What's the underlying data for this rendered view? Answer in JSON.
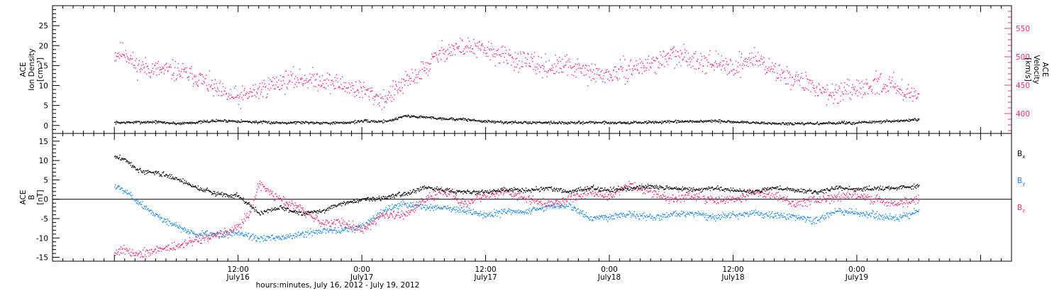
{
  "colors": {
    "density": "#000000",
    "velocity": "#e8326b",
    "bx": "#000000",
    "by": "#1f86e0",
    "bz": "#e8326b",
    "axis": "#000000"
  },
  "chart_data": [
    {
      "type": "scatter",
      "panel": "top",
      "ylabel_left": [
        "ACE",
        "Ion Density",
        "[cm⁻³]"
      ],
      "ylabel_right": [
        "ACE",
        "Velocity",
        "[km/s]"
      ],
      "ylim_left": [
        -2,
        30
      ],
      "yticks_left": [
        0,
        5,
        10,
        15,
        20,
        25
      ],
      "ylim_right": [
        365,
        590
      ],
      "yticks_right": [
        400,
        450,
        500,
        550
      ],
      "series": [
        {
          "key": "density",
          "axis": "left",
          "x": [
            0,
            2,
            4,
            6,
            8,
            10,
            12,
            14,
            16,
            18,
            20,
            22,
            24,
            26,
            27,
            28,
            30,
            32,
            34,
            36,
            38,
            40,
            42,
            44,
            46,
            48,
            50,
            52,
            54,
            56,
            58,
            60,
            62,
            64,
            66,
            68,
            70,
            72,
            74,
            76,
            78
          ],
          "y": [
            0.8,
            0.9,
            1.0,
            0.6,
            0.9,
            1.3,
            1.2,
            0.9,
            0.8,
            0.9,
            0.8,
            0.7,
            1.2,
            1.1,
            1.5,
            2.5,
            2.2,
            1.8,
            1.6,
            1.1,
            0.9,
            0.8,
            0.9,
            0.7,
            0.9,
            0.8,
            0.8,
            0.9,
            1.0,
            1.1,
            1.2,
            1.0,
            0.8,
            0.6,
            0.5,
            0.6,
            0.7,
            0.8,
            1.0,
            1.2,
            1.6
          ]
        },
        {
          "key": "velocity",
          "axis": "right",
          "x": [
            0,
            1,
            2,
            4,
            6,
            8,
            10,
            11,
            12,
            14,
            16,
            18,
            20,
            22,
            24,
            26,
            28,
            30,
            31,
            32,
            34,
            36,
            38,
            40,
            42,
            44,
            46,
            48,
            50,
            52,
            54,
            56,
            58,
            60,
            62,
            64,
            66,
            68,
            70,
            72,
            74,
            76,
            78
          ],
          "y": [
            505,
            510,
            485,
            478,
            475,
            465,
            440,
            432,
            428,
            442,
            457,
            462,
            460,
            451,
            442,
            425,
            452,
            478,
            498,
            512,
            518,
            512,
            500,
            490,
            482,
            485,
            472,
            468,
            480,
            488,
            502,
            498,
            490,
            482,
            500,
            475,
            462,
            445,
            435,
            440,
            455,
            448,
            430
          ]
        }
      ]
    },
    {
      "type": "scatter",
      "panel": "bottom",
      "ylabel_left": [
        "ACE",
        "B",
        "[nT]"
      ],
      "ylim": [
        -16,
        17
      ],
      "yticks": [
        -15,
        -10,
        -5,
        0,
        5,
        10,
        15
      ],
      "series": [
        {
          "key": "bx",
          "name": "Bx",
          "x": [
            0,
            1,
            2,
            3,
            4,
            6,
            8,
            10,
            12,
            14,
            16,
            18,
            20,
            22,
            24,
            26,
            28,
            30,
            32,
            34,
            36,
            38,
            40,
            42,
            44,
            46,
            48,
            50,
            52,
            54,
            56,
            58,
            60,
            62,
            64,
            66,
            68,
            70,
            72,
            74,
            76,
            78
          ],
          "y": [
            11,
            10.5,
            8,
            7,
            7,
            5.5,
            3,
            1.5,
            1,
            -3.5,
            -2,
            -3.5,
            -3,
            -1,
            0,
            0.5,
            1.5,
            3,
            2.5,
            2,
            2,
            2.5,
            2.5,
            3,
            2,
            3,
            2.5,
            3,
            3.5,
            3,
            2.5,
            3,
            2.5,
            2,
            3,
            2.5,
            2,
            3,
            2.5,
            3,
            3,
            3.5
          ]
        },
        {
          "key": "by",
          "name": "By",
          "x": [
            0,
            1,
            2,
            4,
            6,
            8,
            10,
            12,
            14,
            16,
            18,
            20,
            22,
            24,
            26,
            28,
            30,
            32,
            34,
            36,
            38,
            40,
            42,
            44,
            46,
            48,
            50,
            52,
            54,
            56,
            58,
            60,
            62,
            64,
            66,
            68,
            70,
            72,
            74,
            76,
            78
          ],
          "y": [
            3.5,
            2.5,
            0,
            -4,
            -7,
            -9,
            -9,
            -8.5,
            -10,
            -10,
            -9,
            -8,
            -8,
            -7,
            -3,
            -1,
            -2,
            -2,
            -3,
            -4,
            -3,
            -3,
            -2,
            -1.5,
            -4.5,
            -4.5,
            -3.5,
            -4.5,
            -4,
            -3.5,
            -4.5,
            -4,
            -3.5,
            -4,
            -4.5,
            -5.5,
            -3,
            -3.5,
            -4,
            -5,
            -2.5
          ]
        },
        {
          "key": "bz",
          "name": "Bz",
          "x": [
            0,
            1,
            2,
            4,
            6,
            8,
            10,
            11,
            12,
            13,
            14,
            16,
            18,
            20,
            22,
            24,
            26,
            28,
            30,
            32,
            34,
            36,
            38,
            40,
            42,
            44,
            46,
            48,
            50,
            52,
            54,
            56,
            58,
            60,
            62,
            64,
            66,
            68,
            70,
            72,
            74,
            76,
            78
          ],
          "y": [
            -13.5,
            -13,
            -14,
            -13,
            -12,
            -10.5,
            -9,
            -8.5,
            -7,
            -4,
            4,
            0,
            -2,
            -6,
            -6,
            -8,
            -4,
            -4,
            0,
            2,
            -1,
            1,
            2,
            0,
            -1,
            0,
            2,
            1,
            4,
            2,
            0,
            1,
            0,
            0,
            2,
            1,
            -1,
            0,
            1,
            1,
            0,
            -1,
            0
          ]
        }
      ],
      "legend": [
        "B",
        "B",
        "B"
      ],
      "legend_sub": [
        "x",
        "y",
        "z"
      ]
    }
  ],
  "x_axis": {
    "xlim": [
      -6,
      87
    ],
    "ticks": [
      12,
      24,
      36,
      48,
      60,
      72
    ],
    "tick_labels": [
      "12:00",
      "0:00",
      "12:00",
      "0:00",
      "12:00",
      "0:00"
    ],
    "date_ticks": [
      {
        "x": 12,
        "label": "July16"
      },
      {
        "x": 24,
        "label": "July17"
      },
      {
        "x": 36,
        "label": "July17"
      },
      {
        "x": 48,
        "label": "July18"
      },
      {
        "x": 60,
        "label": "July18"
      },
      {
        "x": 72,
        "label": "July19"
      }
    ],
    "xlabel": "hours:minutes, July 16, 2012 - July 19, 2012"
  }
}
